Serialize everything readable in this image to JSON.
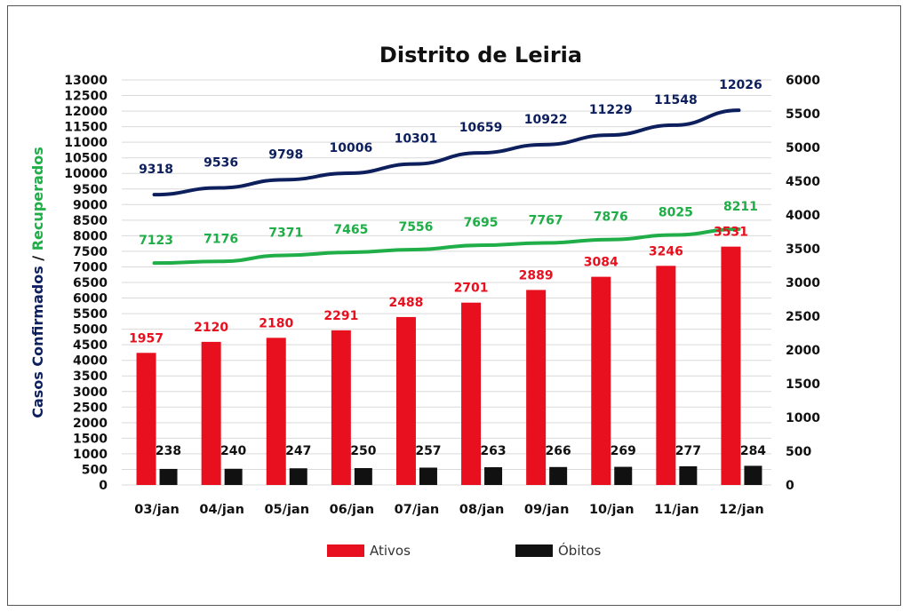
{
  "colors": {
    "ativos": "#e8101e",
    "obitos": "#111111",
    "confirmados": "#0d1f5c",
    "recuperados": "#1fae47",
    "grid": "#d9d9d9"
  },
  "chart_data": {
    "type": "bar",
    "title": "Distrito de Leiria",
    "categories": [
      "03/jan",
      "04/jan",
      "05/jan",
      "06/jan",
      "07/jan",
      "08/jan",
      "09/jan",
      "10/jan",
      "11/jan",
      "12/jan"
    ],
    "ylabel_left": {
      "part1": "Casos Confirmados",
      "separator": " / ",
      "part2": "Recuperados"
    },
    "ylim_left": [
      0,
      13000
    ],
    "ylim_right": [
      0,
      6000
    ],
    "yticks_left": [
      "0",
      "500",
      "1000",
      "1500",
      "2000",
      "2500",
      "3000",
      "3500",
      "4000",
      "4500",
      "5000",
      "5500",
      "6000",
      "6500",
      "7000",
      "7500",
      "8000",
      "8500",
      "9000",
      "9500",
      "10000",
      "10500",
      "11000",
      "11500",
      "12000",
      "12500",
      "13000"
    ],
    "yticks_right": [
      "0",
      "500",
      "1000",
      "1500",
      "2000",
      "2500",
      "3000",
      "3500",
      "4000",
      "4500",
      "5000",
      "5500",
      "6000"
    ],
    "grid": true,
    "legend_position": "bottom",
    "series": [
      {
        "name": "Ativos",
        "type": "bar",
        "axis": "right",
        "color": "#e8101e",
        "values": [
          1957,
          2120,
          2180,
          2291,
          2488,
          2701,
          2889,
          3084,
          3246,
          3531
        ],
        "labels": [
          "1957",
          "2120",
          "2180",
          "2291",
          "2488",
          "2701",
          "2889",
          "3084",
          "3246",
          "3531"
        ]
      },
      {
        "name": "Óbitos",
        "type": "bar",
        "axis": "right",
        "color": "#111111",
        "values": [
          238,
          240,
          247,
          250,
          257,
          263,
          266,
          269,
          277,
          284
        ],
        "labels": [
          "238",
          "240",
          "247",
          "250",
          "257",
          "263",
          "266",
          "269",
          "277",
          "284"
        ]
      },
      {
        "type": "line",
        "axis": "left",
        "color": "#0d1f5c",
        "values": [
          9318,
          9536,
          9798,
          10006,
          10301,
          10659,
          10922,
          11229,
          11548,
          12026
        ],
        "labels": [
          "9318",
          "9536",
          "9798",
          "10006",
          "10301",
          "10659",
          "10922",
          "11229",
          "11548",
          "12026"
        ]
      },
      {
        "type": "line",
        "axis": "left",
        "color": "#1fae47",
        "values": [
          7123,
          7176,
          7371,
          7465,
          7556,
          7695,
          7767,
          7876,
          8025,
          8211
        ],
        "labels": [
          "7123",
          "7176",
          "7371",
          "7465",
          "7556",
          "7695",
          "7767",
          "7876",
          "8025",
          "8211"
        ]
      }
    ],
    "legend": [
      "Ativos",
      "Óbitos"
    ]
  }
}
